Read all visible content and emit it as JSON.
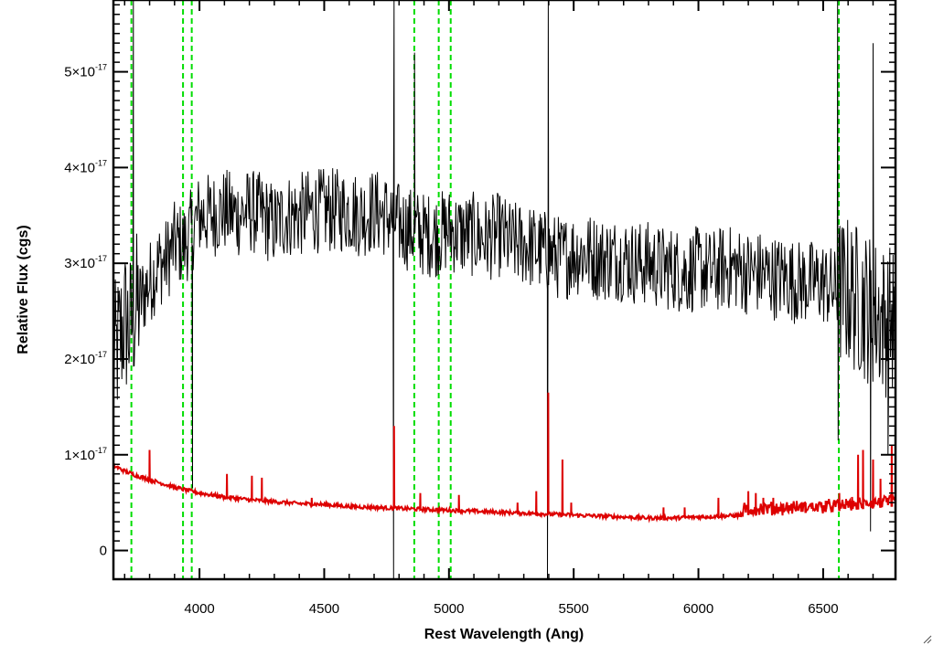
{
  "chart_data": {
    "type": "line",
    "xlabel": "Rest Wavelength (Ang)",
    "ylabel": "Relative Flux (cgs)",
    "xlim": [
      3655,
      6790
    ],
    "ylim": [
      -3e-18,
      5.75e-17
    ],
    "grid": false,
    "x_ticks": [
      4000,
      4500,
      5000,
      5500,
      6000,
      6500
    ],
    "x_tick_labels": [
      "4000",
      "4500",
      "5000",
      "5500",
      "6000",
      "6500"
    ],
    "y_ticks": [
      0,
      1e-17,
      2e-17,
      3e-17,
      4e-17,
      5e-17
    ],
    "y_tick_labels": [
      {
        "mant": "0",
        "exp": ""
      },
      {
        "mant": "1×10",
        "exp": "-17"
      },
      {
        "mant": "2×10",
        "exp": "-17"
      },
      {
        "mant": "3×10",
        "exp": "-17"
      },
      {
        "mant": "4×10",
        "exp": "-17"
      },
      {
        "mant": "5×10",
        "exp": "-17"
      }
    ],
    "vertical_lines": [
      {
        "x": 3727,
        "color": "#00dd00",
        "style": "dashed"
      },
      {
        "x": 3934,
        "color": "#00dd00",
        "style": "dashed"
      },
      {
        "x": 3969,
        "color": "#00dd00",
        "style": "dashed"
      },
      {
        "x": 4861,
        "color": "#00dd00",
        "style": "dashed"
      },
      {
        "x": 4959,
        "color": "#00dd00",
        "style": "dashed"
      },
      {
        "x": 5007,
        "color": "#00dd00",
        "style": "dashed"
      },
      {
        "x": 6563,
        "color": "#00dd00",
        "style": "dashed"
      }
    ],
    "series": [
      {
        "color": "#000000",
        "x": [
          3660,
          3680,
          3700,
          3720,
          3740,
          3760,
          3780,
          3800,
          3820,
          3840,
          3860,
          3880,
          3900,
          3920,
          3940,
          3960,
          3980,
          4000,
          4050,
          4100,
          4150,
          4200,
          4250,
          4300,
          4350,
          4400,
          4450,
          4500,
          4550,
          4600,
          4650,
          4700,
          4750,
          4800,
          4850,
          4900,
          4950,
          5000,
          5050,
          5100,
          5150,
          5200,
          5250,
          5300,
          5350,
          5400,
          5450,
          5500,
          5550,
          5600,
          5650,
          5700,
          5750,
          5800,
          5850,
          5900,
          5950,
          6000,
          6050,
          6100,
          6150,
          6200,
          6250,
          6300,
          6350,
          6400,
          6450,
          6500,
          6550,
          6600,
          6650,
          6700,
          6750,
          6780
        ],
        "y": [
          2e-17,
          2.2e-17,
          2.4e-17,
          2.3e-17,
          2.5e-17,
          2.6e-17,
          2.7e-17,
          2.8e-17,
          2.9e-17,
          3e-17,
          3e-17,
          3.1e-17,
          3.2e-17,
          3.2e-17,
          3.2e-17,
          3.3e-17,
          3.4e-17,
          3.5e-17,
          3.5e-17,
          3.55e-17,
          3.5e-17,
          3.55e-17,
          3.5e-17,
          3.4e-17,
          3.5e-17,
          3.5e-17,
          3.55e-17,
          3.55e-17,
          3.55e-17,
          3.55e-17,
          3.5e-17,
          3.55e-17,
          3.5e-17,
          3.4e-17,
          3.35e-17,
          3.3e-17,
          3.3e-17,
          3.35e-17,
          3.3e-17,
          3.3e-17,
          3.25e-17,
          3.3e-17,
          3.2e-17,
          3.2e-17,
          3.15e-17,
          3.1e-17,
          3.05e-17,
          3.1e-17,
          3.1e-17,
          3.05e-17,
          3.05e-17,
          3.05e-17,
          3e-17,
          3e-17,
          2.95e-17,
          2.95e-17,
          2.9e-17,
          2.95e-17,
          2.9e-17,
          2.95e-17,
          2.95e-17,
          2.9e-17,
          2.9e-17,
          2.85e-17,
          2.85e-17,
          2.8e-17,
          2.8e-17,
          2.8e-17,
          2.7e-17,
          2.7e-17,
          2.6e-17,
          2.5e-17,
          2.4e-17,
          2.4e-17
        ],
        "noise_amplitude": 4.5e-18,
        "spikes": [
          {
            "x": 3735,
            "y": 5.75e-17
          },
          {
            "x": 3972,
            "y": 6.5e-18
          },
          {
            "x": 4778,
            "y": -3e-18
          },
          {
            "x": 4780,
            "y": 5.75e-17
          },
          {
            "x": 4862,
            "y": 5.2e-17
          },
          {
            "x": 5395,
            "y": -3e-18
          },
          {
            "x": 5398,
            "y": 5.75e-17
          },
          {
            "x": 6558,
            "y": 5.75e-17
          },
          {
            "x": 6560,
            "y": 1.15e-17
          },
          {
            "x": 6690,
            "y": 2e-18
          },
          {
            "x": 6700,
            "y": 5.3e-17
          },
          {
            "x": 6760,
            "y": 1e-17
          }
        ]
      },
      {
        "color": "#dd0000",
        "x": [
          3660,
          3700,
          3750,
          3800,
          3850,
          3900,
          3950,
          4000,
          4100,
          4200,
          4300,
          4400,
          4500,
          4600,
          4700,
          4800,
          4900,
          5000,
          5100,
          5200,
          5300,
          5400,
          5500,
          5600,
          5700,
          5800,
          5900,
          6000,
          6100,
          6200,
          6300,
          6400,
          6500,
          6600,
          6700,
          6790
        ],
        "y": [
          8.8e-18,
          8.3e-18,
          7.8e-18,
          7.4e-18,
          7e-18,
          6.6e-18,
          6.3e-18,
          6e-18,
          5.6e-18,
          5.3e-18,
          5.1e-18,
          4.9e-18,
          4.8e-18,
          4.6e-18,
          4.5e-18,
          4.4e-18,
          4.3e-18,
          4.2e-18,
          4.1e-18,
          4e-18,
          3.9e-18,
          3.8e-18,
          3.7e-18,
          3.6e-18,
          3.5e-18,
          3.4e-18,
          3.4e-18,
          3.5e-18,
          3.6e-18,
          3.7e-18,
          3.8e-18,
          3.9e-18,
          4e-18,
          4.2e-18,
          4.4e-18,
          4.6e-18
        ],
        "noise_amplitude": 2e-19,
        "lines": [
          {
            "x": 3800,
            "y": 1.05e-17
          },
          {
            "x": 4110,
            "y": 8e-18
          },
          {
            "x": 4210,
            "y": 7.8e-18
          },
          {
            "x": 4250,
            "y": 7.6e-18
          },
          {
            "x": 4450,
            "y": 5.5e-18
          },
          {
            "x": 4780,
            "y": 1.3e-17
          },
          {
            "x": 4885,
            "y": 6e-18
          },
          {
            "x": 5040,
            "y": 5.8e-18
          },
          {
            "x": 5275,
            "y": 5e-18
          },
          {
            "x": 5350,
            "y": 6.2e-18
          },
          {
            "x": 5398,
            "y": 1.65e-17
          },
          {
            "x": 5455,
            "y": 9.5e-18
          },
          {
            "x": 5490,
            "y": 5e-18
          },
          {
            "x": 5860,
            "y": 4.5e-18
          },
          {
            "x": 5945,
            "y": 4.5e-18
          },
          {
            "x": 6080,
            "y": 5.5e-18
          },
          {
            "x": 6200,
            "y": 6.2e-18
          },
          {
            "x": 6230,
            "y": 6e-18
          },
          {
            "x": 6260,
            "y": 5.5e-18
          },
          {
            "x": 6300,
            "y": 5.5e-18
          },
          {
            "x": 6430,
            "y": 5e-18
          },
          {
            "x": 6510,
            "y": 5.2e-18
          },
          {
            "x": 6565,
            "y": 6e-18
          },
          {
            "x": 6640,
            "y": 1e-17
          },
          {
            "x": 6660,
            "y": 1.05e-17
          },
          {
            "x": 6700,
            "y": 9.5e-18
          },
          {
            "x": 6730,
            "y": 7.5e-18
          },
          {
            "x": 6775,
            "y": 1.1e-17
          }
        ]
      }
    ]
  }
}
